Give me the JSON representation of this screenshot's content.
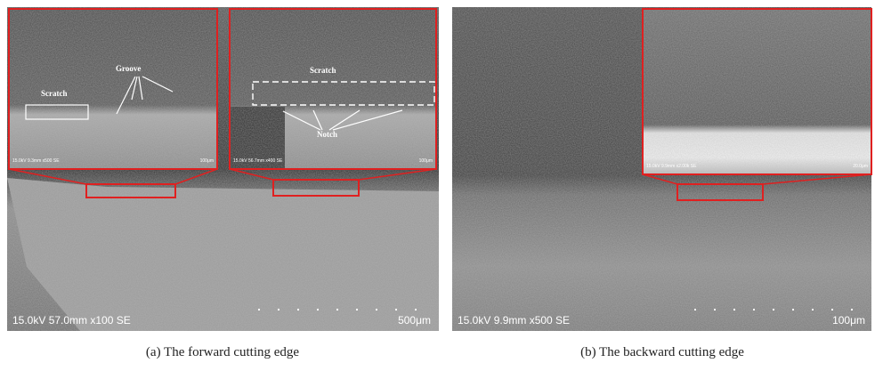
{
  "panels": [
    {
      "caption": "(a) The forward cutting edge",
      "info": "15.0kV 57.0mm x100 SE",
      "scale": "500μm",
      "insets": [
        {
          "info": "15.0kV 9.3mm x500 SE",
          "scale": "100μm",
          "labels": [
            "Groove",
            "Scratch"
          ]
        },
        {
          "info": "15.0kV 56.7mm x400 SE",
          "scale": "100μm",
          "labels": [
            "Scratch",
            "Notch"
          ]
        }
      ]
    },
    {
      "caption": "(b) The backward cutting edge",
      "info": "15.0kV 9.9mm x500 SE",
      "scale": "100μm",
      "insets": [
        {
          "info": "15.0kV 9.9mm x2.00k SE",
          "scale": "20.0μm"
        }
      ]
    }
  ]
}
